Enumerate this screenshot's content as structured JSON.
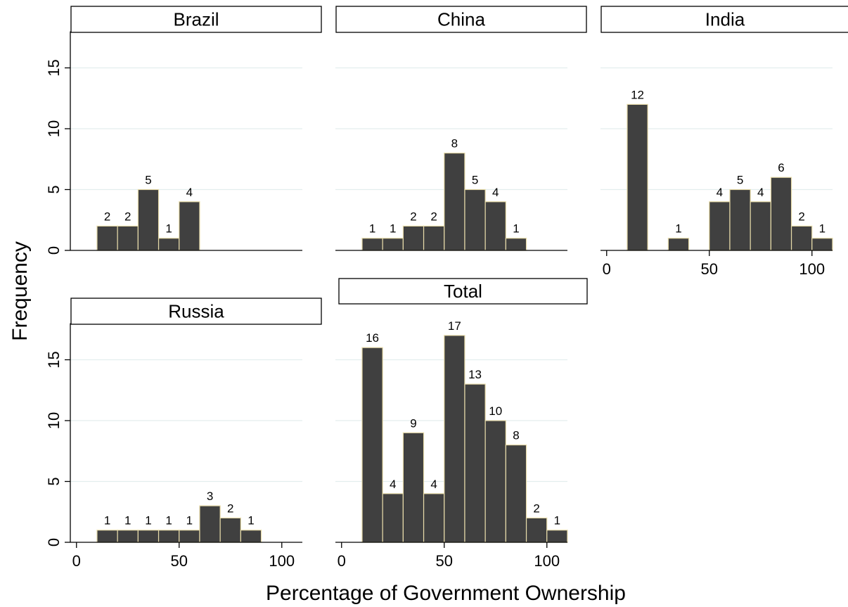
{
  "chart_data": {
    "type": "bar",
    "subtype": "histogram-facets",
    "xlabel": "Percentage of Government Ownership",
    "ylabel": "Frequency",
    "bin_width": 10,
    "grid": true,
    "bar_color": "#404040",
    "bar_edge_color": "#e8dcaa",
    "grid_color": "#e3eeee",
    "panels": [
      {
        "title": "Brazil",
        "ylim": [
          0,
          18
        ],
        "yticks": [
          0,
          5,
          10,
          15
        ],
        "xticks": [],
        "bins": [
          {
            "x": [
              10,
              20
            ],
            "value": 2
          },
          {
            "x": [
              20,
              30
            ],
            "value": 2
          },
          {
            "x": [
              30,
              40
            ],
            "value": 5
          },
          {
            "x": [
              40,
              50
            ],
            "value": 1
          },
          {
            "x": [
              50,
              60
            ],
            "value": 4
          }
        ]
      },
      {
        "title": "China",
        "ylim": [
          0,
          18
        ],
        "yticks": [],
        "xticks": [],
        "bins": [
          {
            "x": [
              10,
              20
            ],
            "value": 1
          },
          {
            "x": [
              20,
              30
            ],
            "value": 1
          },
          {
            "x": [
              30,
              40
            ],
            "value": 2
          },
          {
            "x": [
              40,
              50
            ],
            "value": 2
          },
          {
            "x": [
              50,
              60
            ],
            "value": 8
          },
          {
            "x": [
              60,
              70
            ],
            "value": 5
          },
          {
            "x": [
              70,
              80
            ],
            "value": 4
          },
          {
            "x": [
              80,
              90
            ],
            "value": 1
          }
        ]
      },
      {
        "title": "India",
        "ylim": [
          0,
          18
        ],
        "yticks": [],
        "xticks": [
          0,
          50,
          100
        ],
        "bins": [
          {
            "x": [
              10,
              20
            ],
            "value": 12
          },
          {
            "x": [
              30,
              40
            ],
            "value": 1
          },
          {
            "x": [
              50,
              60
            ],
            "value": 4
          },
          {
            "x": [
              60,
              70
            ],
            "value": 5
          },
          {
            "x": [
              70,
              80
            ],
            "value": 4
          },
          {
            "x": [
              80,
              90
            ],
            "value": 6
          },
          {
            "x": [
              90,
              100
            ],
            "value": 2
          },
          {
            "x": [
              100,
              110
            ],
            "value": 1
          }
        ]
      },
      {
        "title": "Russia",
        "ylim": [
          0,
          18
        ],
        "yticks": [
          0,
          5,
          10,
          15
        ],
        "xticks": [
          0,
          50,
          100
        ],
        "bins": [
          {
            "x": [
              10,
              20
            ],
            "value": 1
          },
          {
            "x": [
              20,
              30
            ],
            "value": 1
          },
          {
            "x": [
              30,
              40
            ],
            "value": 1
          },
          {
            "x": [
              40,
              50
            ],
            "value": 1
          },
          {
            "x": [
              50,
              60
            ],
            "value": 1
          },
          {
            "x": [
              60,
              70
            ],
            "value": 3
          },
          {
            "x": [
              70,
              80
            ],
            "value": 2
          },
          {
            "x": [
              80,
              90
            ],
            "value": 1
          }
        ]
      },
      {
        "title": "Total",
        "ylim": [
          0,
          18
        ],
        "yticks": [],
        "xticks": [
          0,
          50,
          100
        ],
        "bins": [
          {
            "x": [
              10,
              20
            ],
            "value": 16
          },
          {
            "x": [
              20,
              30
            ],
            "value": 4
          },
          {
            "x": [
              30,
              40
            ],
            "value": 9
          },
          {
            "x": [
              40,
              50
            ],
            "value": 4
          },
          {
            "x": [
              50,
              60
            ],
            "value": 17
          },
          {
            "x": [
              60,
              70
            ],
            "value": 13
          },
          {
            "x": [
              70,
              80
            ],
            "value": 10
          },
          {
            "x": [
              80,
              90
            ],
            "value": 8
          },
          {
            "x": [
              90,
              100
            ],
            "value": 2
          },
          {
            "x": [
              100,
              110
            ],
            "value": 1
          }
        ]
      }
    ]
  }
}
